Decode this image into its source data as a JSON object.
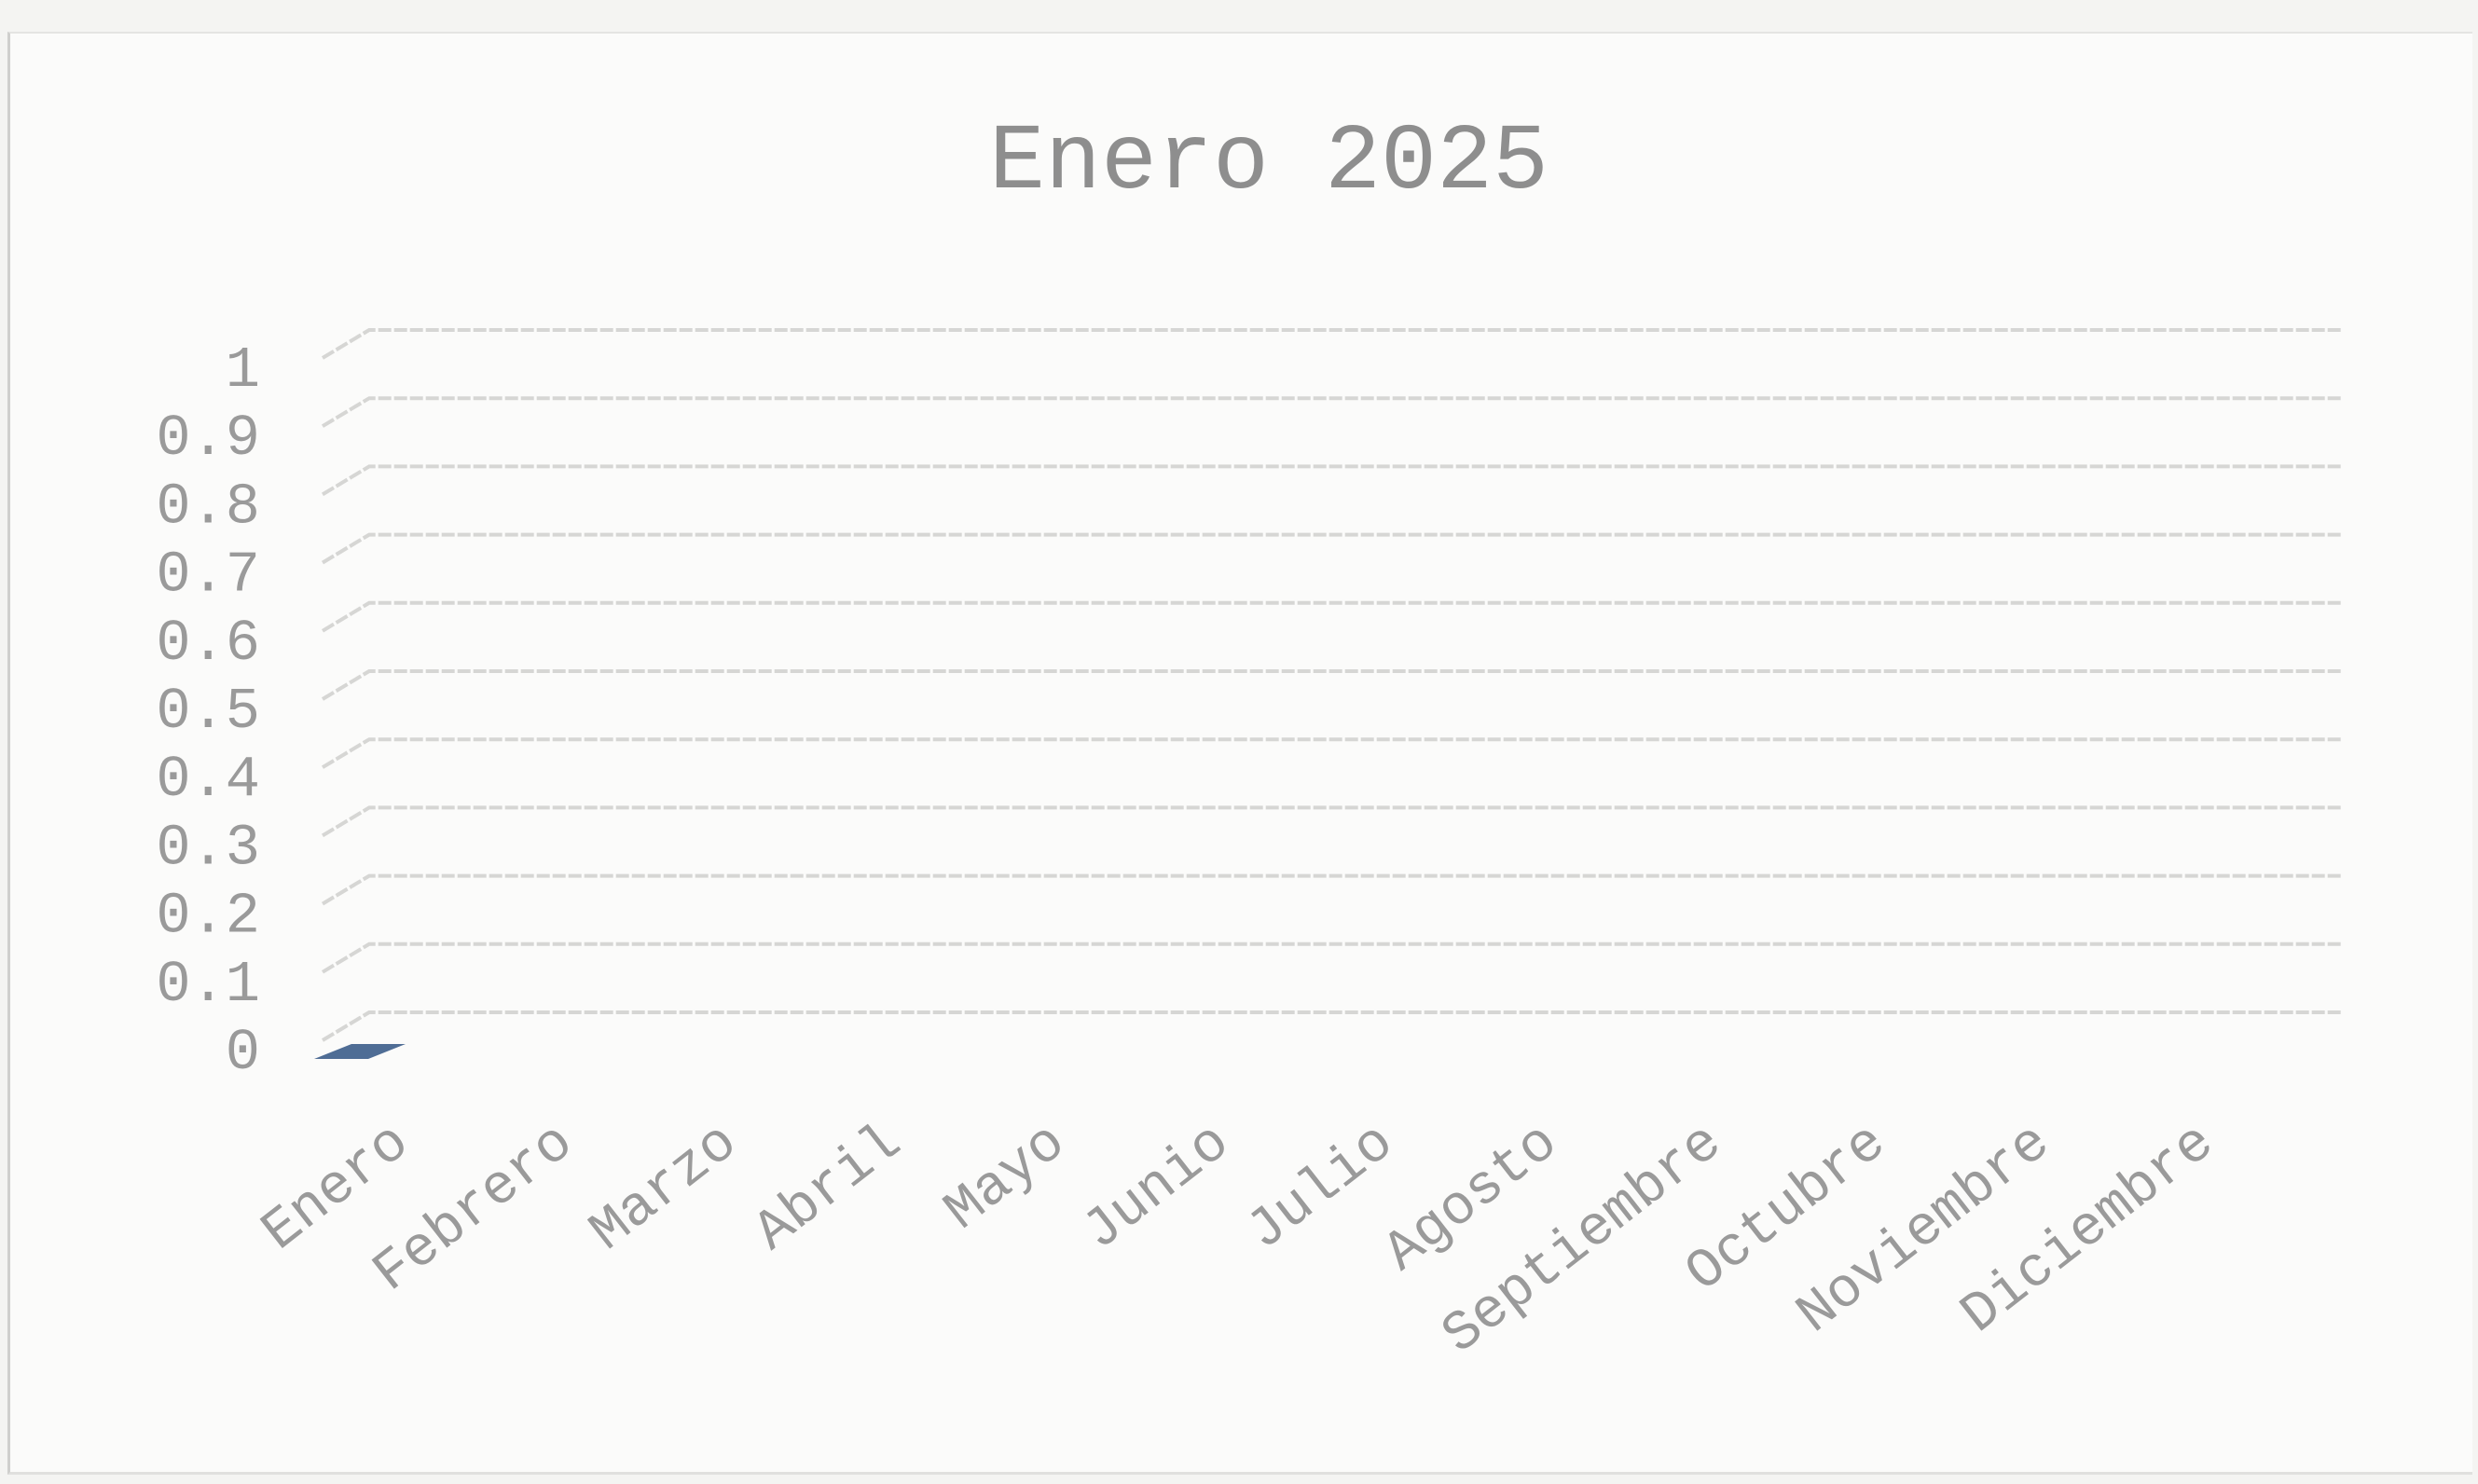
{
  "chart_data": {
    "type": "bar",
    "title": "Enero 2025",
    "categories": [
      "Enero",
      "Febrero",
      "Marzo",
      "Abril",
      "Mayo",
      "Junio",
      "Julio",
      "Agosto",
      "Septiembre",
      "Octubre",
      "Noviembre",
      "Diciembre"
    ],
    "values": [
      0,
      0,
      0,
      0,
      0,
      0,
      0,
      0,
      0,
      0,
      0,
      0
    ],
    "yticks": [
      "0",
      "0.1",
      "0.2",
      "0.3",
      "0.4",
      "0.5",
      "0.6",
      "0.7",
      "0.8",
      "0.9",
      "1"
    ],
    "ylim": [
      0,
      1
    ],
    "grid": true,
    "legend": "none",
    "bar_color": "#4f6d95"
  }
}
